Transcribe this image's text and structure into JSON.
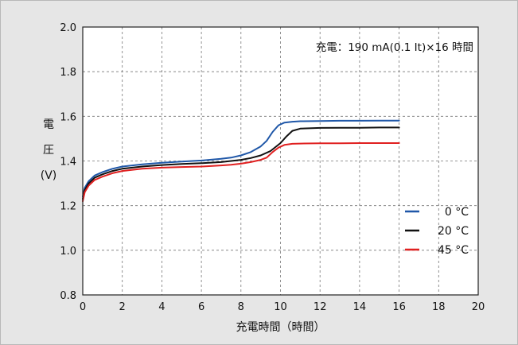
{
  "chart_data": {
    "type": "line",
    "title": "",
    "xlabel": "充電時間（時間）",
    "ylabel_chars": [
      "電",
      "圧"
    ],
    "ylabel_unit": "(V)",
    "annotation": "充電：190 mA(0.1 It)×16 時間",
    "xlim": [
      0,
      20
    ],
    "ylim": [
      0.8,
      2.0
    ],
    "x_ticks": [
      0,
      2,
      4,
      6,
      8,
      10,
      12,
      14,
      16,
      18,
      20
    ],
    "y_ticks": [
      "0.8",
      "1.0",
      "1.2",
      "1.4",
      "1.6",
      "1.8",
      "2.0"
    ],
    "grid": true,
    "legend_position": "right",
    "series": [
      {
        "name": "0 °C",
        "color": "#1f57a8",
        "points": [
          [
            0,
            1.24
          ],
          [
            0.1,
            1.28
          ],
          [
            0.3,
            1.31
          ],
          [
            0.6,
            1.335
          ],
          [
            1,
            1.35
          ],
          [
            1.5,
            1.365
          ],
          [
            2,
            1.375
          ],
          [
            3,
            1.385
          ],
          [
            4,
            1.392
          ],
          [
            5,
            1.397
          ],
          [
            6,
            1.402
          ],
          [
            7,
            1.41
          ],
          [
            7.5,
            1.415
          ],
          [
            8,
            1.425
          ],
          [
            8.5,
            1.44
          ],
          [
            9,
            1.465
          ],
          [
            9.3,
            1.49
          ],
          [
            9.6,
            1.53
          ],
          [
            9.9,
            1.56
          ],
          [
            10.2,
            1.572
          ],
          [
            10.6,
            1.576
          ],
          [
            11,
            1.578
          ],
          [
            12,
            1.579
          ],
          [
            13,
            1.58
          ],
          [
            14,
            1.58
          ],
          [
            15,
            1.581
          ],
          [
            16,
            1.581
          ]
        ]
      },
      {
        "name": "20 °C",
        "color": "#111111",
        "points": [
          [
            0,
            1.23
          ],
          [
            0.1,
            1.27
          ],
          [
            0.3,
            1.3
          ],
          [
            0.6,
            1.325
          ],
          [
            1,
            1.34
          ],
          [
            1.5,
            1.355
          ],
          [
            2,
            1.365
          ],
          [
            3,
            1.375
          ],
          [
            4,
            1.382
          ],
          [
            5,
            1.387
          ],
          [
            6,
            1.39
          ],
          [
            7,
            1.395
          ],
          [
            7.5,
            1.4
          ],
          [
            8,
            1.405
          ],
          [
            8.5,
            1.413
          ],
          [
            9,
            1.425
          ],
          [
            9.5,
            1.445
          ],
          [
            10,
            1.48
          ],
          [
            10.3,
            1.51
          ],
          [
            10.6,
            1.535
          ],
          [
            11,
            1.545
          ],
          [
            12,
            1.548
          ],
          [
            13,
            1.549
          ],
          [
            14,
            1.549
          ],
          [
            15,
            1.55
          ],
          [
            16,
            1.55
          ]
        ]
      },
      {
        "name": "45 °C",
        "color": "#e02020",
        "points": [
          [
            0,
            1.22
          ],
          [
            0.1,
            1.26
          ],
          [
            0.3,
            1.29
          ],
          [
            0.6,
            1.315
          ],
          [
            1,
            1.33
          ],
          [
            1.5,
            1.345
          ],
          [
            2,
            1.355
          ],
          [
            3,
            1.365
          ],
          [
            4,
            1.37
          ],
          [
            5,
            1.373
          ],
          [
            6,
            1.375
          ],
          [
            7,
            1.38
          ],
          [
            7.5,
            1.383
          ],
          [
            8,
            1.388
          ],
          [
            8.5,
            1.395
          ],
          [
            9,
            1.405
          ],
          [
            9.3,
            1.415
          ],
          [
            9.6,
            1.44
          ],
          [
            9.9,
            1.46
          ],
          [
            10.2,
            1.472
          ],
          [
            10.6,
            1.477
          ],
          [
            11,
            1.478
          ],
          [
            12,
            1.479
          ],
          [
            13,
            1.479
          ],
          [
            14,
            1.48
          ],
          [
            15,
            1.48
          ],
          [
            16,
            1.48
          ]
        ]
      }
    ]
  }
}
